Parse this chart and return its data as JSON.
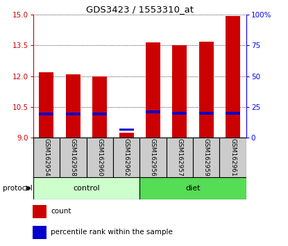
{
  "title": "GDS3423 / 1553310_at",
  "samples": [
    "GSM162954",
    "GSM162958",
    "GSM162960",
    "GSM162962",
    "GSM162956",
    "GSM162957",
    "GSM162959",
    "GSM162961"
  ],
  "groups": [
    "control",
    "control",
    "control",
    "control",
    "diet",
    "diet",
    "diet",
    "diet"
  ],
  "count_values": [
    12.2,
    12.1,
    12.0,
    9.25,
    13.65,
    13.5,
    13.7,
    14.95
  ],
  "percentile_values": [
    10.15,
    10.15,
    10.15,
    9.4,
    10.25,
    10.2,
    10.2,
    10.2
  ],
  "ymin": 9,
  "ymax": 15,
  "yticks": [
    9,
    10.5,
    12,
    13.5,
    15
  ],
  "right_yticks": [
    0,
    25,
    50,
    75,
    100
  ],
  "bar_color": "#cc0000",
  "percentile_color": "#0000cc",
  "bar_width": 0.55,
  "control_bg": "#ccffcc",
  "diet_bg": "#55dd55",
  "label_bg": "#cccccc",
  "control_label": "control",
  "diet_label": "diet",
  "protocol_label": "protocol",
  "legend_count": "count",
  "legend_percentile": "percentile rank within the sample"
}
